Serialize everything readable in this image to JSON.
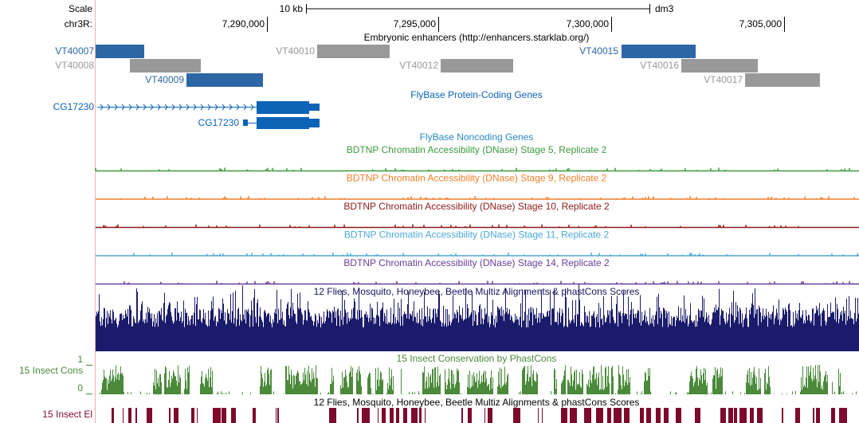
{
  "ruler": {
    "scale_label": "Scale",
    "scale_length": "10 kb",
    "assembly": "dm3",
    "chrom": "chr3R:",
    "positions": [
      "7,290,000",
      "7,295,000",
      "7,300,000",
      "7,305,000"
    ]
  },
  "tracks": {
    "enhancers": {
      "title": "Embryonic enhancers (http://enhancers.starklab.org/)",
      "features": [
        "VT40007",
        "VT40008",
        "VT40009",
        "VT40010",
        "VT40012",
        "VT40015",
        "VT40016",
        "VT40017"
      ]
    },
    "genes": {
      "title": "FlyBase Protein-Coding Genes",
      "transcripts": [
        "CG17230",
        "CG17230"
      ]
    },
    "noncoding": {
      "title": "FlyBase Noncoding Genes"
    },
    "dnase": [
      "BDTNP Chromatin Accessibility (DNase) Stage 5, Replicate 2",
      "BDTNP Chromatin Accessibility (DNase) Stage 9, Replicate 2",
      "BDTNP Chromatin Accessibility (DNase) Stage 10, Replicate 2",
      "BDTNP Chromatin Accessibility (DNase) Stage 11, Replicate 2",
      "BDTNP Chromatin Accessibility (DNase) Stage 14, Replicate 2"
    ],
    "multiz": {
      "title": "12 Flies, Mosquito, Honeybee, Beetle Multiz Alignments & phastCons Scores"
    },
    "phastcons": {
      "title": "15 Insect Conservation by PhastCons",
      "short_label": "15 Insect Cons",
      "axis_max": 1,
      "axis_min": 0
    },
    "elements": {
      "title": "12 Flies, Mosquito, Honeybee, Beetle Multiz Alignments & phastCons Scores",
      "short_label": "15 Insect El"
    }
  }
}
